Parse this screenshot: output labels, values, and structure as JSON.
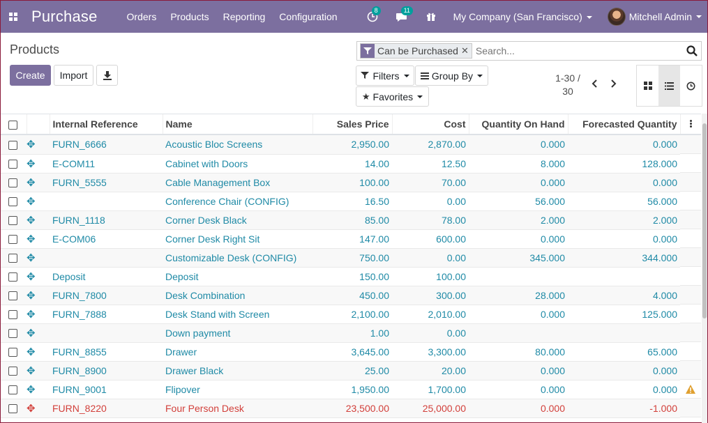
{
  "navbar": {
    "app_title": "Purchase",
    "menu": [
      "Orders",
      "Products",
      "Reporting",
      "Configuration"
    ],
    "activity_count": "8",
    "messages_count": "11",
    "company": "My Company (San Francisco)",
    "user": "Mitchell Admin",
    "bg_color": "#7c6f9f"
  },
  "control_panel": {
    "breadcrumb": "Products",
    "create_label": "Create",
    "import_label": "Import",
    "facet_label": "Can be Purchased",
    "search_placeholder": "Search...",
    "filters_label": "Filters",
    "groupby_label": "Group By",
    "favorites_label": "Favorites",
    "pager_value": "1-30 /",
    "pager_total": "30"
  },
  "table": {
    "columns": [
      "Internal Reference",
      "Name",
      "Sales Price",
      "Cost",
      "Quantity On Hand",
      "Forecasted Quantity"
    ],
    "rows": [
      {
        "ref": "FURN_6666",
        "name": "Acoustic Bloc Screens",
        "price": "2,950.00",
        "cost": "2,870.00",
        "qty": "0.000",
        "forecast": "0.000",
        "danger": false,
        "warn": false
      },
      {
        "ref": "E-COM11",
        "name": "Cabinet with Doors",
        "price": "14.00",
        "cost": "12.50",
        "qty": "8.000",
        "forecast": "128.000",
        "danger": false,
        "warn": false
      },
      {
        "ref": "FURN_5555",
        "name": "Cable Management Box",
        "price": "100.00",
        "cost": "70.00",
        "qty": "0.000",
        "forecast": "0.000",
        "danger": false,
        "warn": false
      },
      {
        "ref": "",
        "name": "Conference Chair (CONFIG)",
        "price": "16.50",
        "cost": "0.00",
        "qty": "56.000",
        "forecast": "56.000",
        "danger": false,
        "warn": false
      },
      {
        "ref": "FURN_1118",
        "name": "Corner Desk Black",
        "price": "85.00",
        "cost": "78.00",
        "qty": "2.000",
        "forecast": "2.000",
        "danger": false,
        "warn": false
      },
      {
        "ref": "E-COM06",
        "name": "Corner Desk Right Sit",
        "price": "147.00",
        "cost": "600.00",
        "qty": "0.000",
        "forecast": "0.000",
        "danger": false,
        "warn": false
      },
      {
        "ref": "",
        "name": "Customizable Desk (CONFIG)",
        "price": "750.00",
        "cost": "0.00",
        "qty": "345.000",
        "forecast": "344.000",
        "danger": false,
        "warn": false
      },
      {
        "ref": "Deposit",
        "name": "Deposit",
        "price": "150.00",
        "cost": "100.00",
        "qty": "",
        "forecast": "",
        "danger": false,
        "warn": false
      },
      {
        "ref": "FURN_7800",
        "name": "Desk Combination",
        "price": "450.00",
        "cost": "300.00",
        "qty": "28.000",
        "forecast": "4.000",
        "danger": false,
        "warn": false
      },
      {
        "ref": "FURN_7888",
        "name": "Desk Stand with Screen",
        "price": "2,100.00",
        "cost": "2,010.00",
        "qty": "0.000",
        "forecast": "125.000",
        "danger": false,
        "warn": false
      },
      {
        "ref": "",
        "name": "Down payment",
        "price": "1.00",
        "cost": "0.00",
        "qty": "",
        "forecast": "",
        "danger": false,
        "warn": false
      },
      {
        "ref": "FURN_8855",
        "name": "Drawer",
        "price": "3,645.00",
        "cost": "3,300.00",
        "qty": "80.000",
        "forecast": "65.000",
        "danger": false,
        "warn": false
      },
      {
        "ref": "FURN_8900",
        "name": "Drawer Black",
        "price": "25.00",
        "cost": "20.00",
        "qty": "0.000",
        "forecast": "0.000",
        "danger": false,
        "warn": false
      },
      {
        "ref": "FURN_9001",
        "name": "Flipover",
        "price": "1,950.00",
        "cost": "1,700.00",
        "qty": "0.000",
        "forecast": "0.000",
        "danger": false,
        "warn": true
      },
      {
        "ref": "FURN_8220",
        "name": "Four Person Desk",
        "price": "23,500.00",
        "cost": "25,000.00",
        "qty": "0.000",
        "forecast": "-1.000",
        "danger": true,
        "warn": false
      }
    ],
    "link_color": "#1f8aa6",
    "danger_color": "#d23f3a",
    "warn_color": "#e0a030"
  }
}
